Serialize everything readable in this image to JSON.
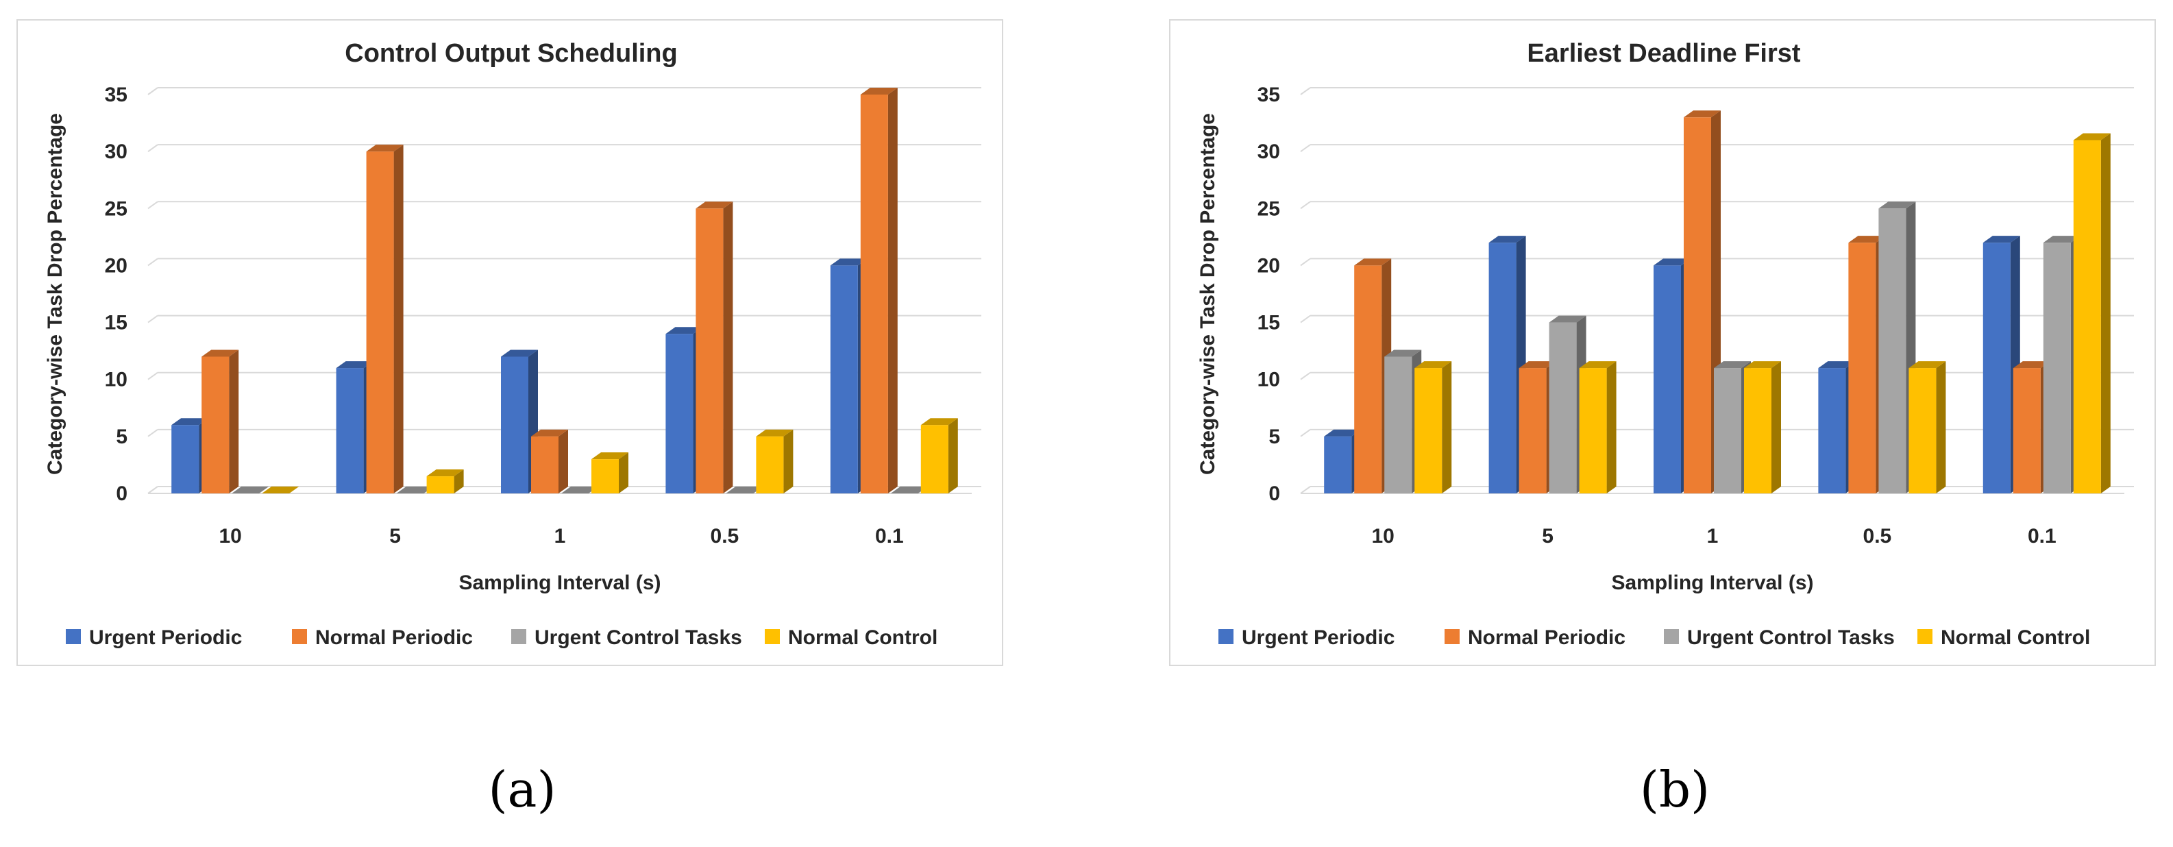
{
  "colors": {
    "urgent_periodic": "#4472C4",
    "normal_periodic": "#ED7D31",
    "urgent_control": "#A5A5A5",
    "normal_control": "#FFC000",
    "grid": "#d9d9d9",
    "text": "#262626"
  },
  "captions": {
    "a": "(a)",
    "b": "(b)"
  },
  "chart_data": [
    {
      "type": "bar",
      "title": "Control Output Scheduling",
      "xlabel": "Sampling Interval (s)",
      "ylabel": "Category-wise Task Drop Percentage",
      "categories": [
        "10",
        "5",
        "1",
        "0.5",
        "0.1"
      ],
      "ylim": [
        0,
        35
      ],
      "yticks": [
        0,
        5,
        10,
        15,
        20,
        25,
        30,
        35
      ],
      "grid": true,
      "legend_position": "bottom",
      "series": [
        {
          "name": "Urgent Periodic",
          "color_key": "urgent_periodic",
          "values": [
            6,
            11,
            12,
            14,
            20
          ]
        },
        {
          "name": "Normal Periodic",
          "color_key": "normal_periodic",
          "values": [
            12,
            30,
            5,
            25,
            35
          ]
        },
        {
          "name": "Urgent Control Tasks",
          "color_key": "urgent_control",
          "values": [
            0,
            0,
            0,
            0,
            0
          ]
        },
        {
          "name": "Normal Control",
          "color_key": "normal_control",
          "values": [
            0,
            1.5,
            3,
            5,
            6
          ]
        }
      ]
    },
    {
      "type": "bar",
      "title": "Earliest Deadline First",
      "xlabel": "Sampling Interval (s)",
      "ylabel": "Category-wise Task Drop Percentage",
      "categories": [
        "10",
        "5",
        "1",
        "0.5",
        "0.1"
      ],
      "ylim": [
        0,
        35
      ],
      "yticks": [
        0,
        5,
        10,
        15,
        20,
        25,
        30,
        35
      ],
      "grid": true,
      "legend_position": "bottom",
      "series": [
        {
          "name": "Urgent Periodic",
          "color_key": "urgent_periodic",
          "values": [
            5,
            22,
            20,
            11,
            22
          ]
        },
        {
          "name": "Normal Periodic",
          "color_key": "normal_periodic",
          "values": [
            20,
            11,
            33,
            22,
            11
          ]
        },
        {
          "name": "Urgent Control Tasks",
          "color_key": "urgent_control",
          "values": [
            12,
            15,
            11,
            25,
            22
          ]
        },
        {
          "name": "Normal Control",
          "color_key": "normal_control",
          "values": [
            11,
            11,
            11,
            11,
            31
          ]
        }
      ]
    }
  ]
}
